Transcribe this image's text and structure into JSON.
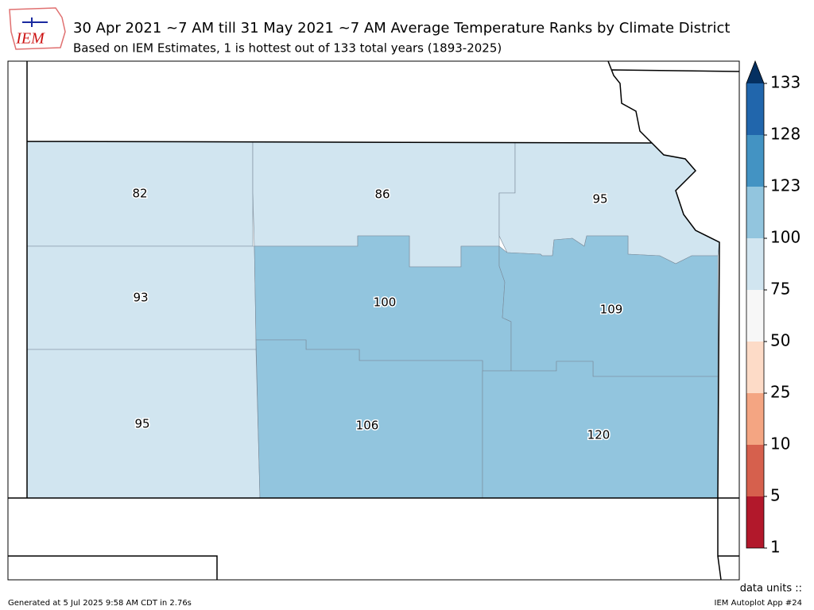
{
  "header": {
    "logo": "IEM",
    "title": "30 Apr 2021 ~7 AM till 31 May 2021 ~7 AM Average Temperature Ranks by Climate District",
    "subtitle": "Based on IEM Estimates, 1 is hottest out of 133 total years (1893-2025)"
  },
  "districts": [
    {
      "value": 82
    },
    {
      "value": 86
    },
    {
      "value": 95
    },
    {
      "value": 93
    },
    {
      "value": 100
    },
    {
      "value": 109
    },
    {
      "value": 95
    },
    {
      "value": 106
    },
    {
      "value": 120
    }
  ],
  "colorbar": {
    "ticks": [
      1,
      5,
      10,
      25,
      50,
      75,
      100,
      123,
      128,
      133
    ],
    "colors": [
      "#b2182b",
      "#d6604d",
      "#f4a582",
      "#fddbc7",
      "#f7f7f7",
      "#d1e5f0",
      "#92c5de",
      "#4393c3",
      "#2166ac"
    ],
    "over_color": "#053061"
  },
  "footer": {
    "generated": "Generated at 5 Jul 2025 9:58 AM CDT in 2.76s",
    "units": "data units ::",
    "app": "IEM Autoplot App #24"
  }
}
